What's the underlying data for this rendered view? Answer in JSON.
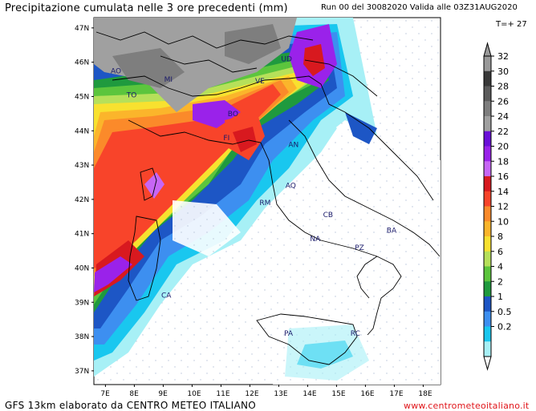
{
  "header": {
    "title": "Precipitazione cumulata nelle 3 ore precedenti (mm)",
    "run_info": "Run 00 del 30082020  Valida alle 03Z31AUG2020",
    "forecast_step": "T=+ 27"
  },
  "footer": {
    "model_credit": "GFS 13km elaborato da CENTRO METEO ITALIANO",
    "website": "www.centrometeoitaliano.it"
  },
  "map": {
    "lat_labels": [
      "47N",
      "46N",
      "45N",
      "44N",
      "43N",
      "42N",
      "41N",
      "40N",
      "39N",
      "38N",
      "37N"
    ],
    "lon_labels": [
      "7E",
      "8E",
      "9E",
      "10E",
      "11E",
      "12E",
      "13E",
      "14E",
      "15E",
      "16E",
      "17E",
      "18E"
    ],
    "city_labels": [
      {
        "code": "TO",
        "lon": 7.9,
        "lat": 45.05
      },
      {
        "code": "MI",
        "lon": 9.2,
        "lat": 45.5
      },
      {
        "code": "AO",
        "lon": 7.35,
        "lat": 45.75
      },
      {
        "code": "VE",
        "lon": 12.35,
        "lat": 45.45
      },
      {
        "code": "UD",
        "lon": 13.25,
        "lat": 46.1
      },
      {
        "code": "BO",
        "lon": 11.4,
        "lat": 44.5
      },
      {
        "code": "FI",
        "lon": 11.25,
        "lat": 43.8
      },
      {
        "code": "AN",
        "lon": 13.5,
        "lat": 43.6
      },
      {
        "code": "AQ",
        "lon": 13.4,
        "lat": 42.4
      },
      {
        "code": "RM",
        "lon": 12.5,
        "lat": 41.9
      },
      {
        "code": "CB",
        "lon": 14.7,
        "lat": 41.55
      },
      {
        "code": "BA",
        "lon": 16.9,
        "lat": 41.1
      },
      {
        "code": "NA",
        "lon": 14.25,
        "lat": 40.85
      },
      {
        "code": "PZ",
        "lon": 15.8,
        "lat": 40.6
      },
      {
        "code": "CA",
        "lon": 9.1,
        "lat": 39.2
      },
      {
        "code": "PA",
        "lon": 13.35,
        "lat": 38.1
      },
      {
        "code": "RC",
        "lon": 15.65,
        "lat": 38.1
      }
    ]
  },
  "legend": {
    "levels": [
      "32",
      "30",
      "28",
      "26",
      "24",
      "22",
      "20",
      "18",
      "16",
      "14",
      "12",
      "10",
      "8",
      "6",
      "4",
      "2",
      "1",
      "0.5",
      "0.2"
    ],
    "colors": [
      "#9a9a9a",
      "#3a3a3a",
      "#5c5c5c",
      "#7e7e7e",
      "#a0a0a0",
      "#6a0fd8",
      "#9a22ea",
      "#c766f5",
      "#d8191f",
      "#f8442a",
      "#fb8a2a",
      "#fbb52b",
      "#f8e12f",
      "#b6e05a",
      "#5cc53d",
      "#1f9a3e",
      "#1d56c5",
      "#3d8ff0",
      "#19c7ef",
      "#a7f0f6"
    ]
  }
}
